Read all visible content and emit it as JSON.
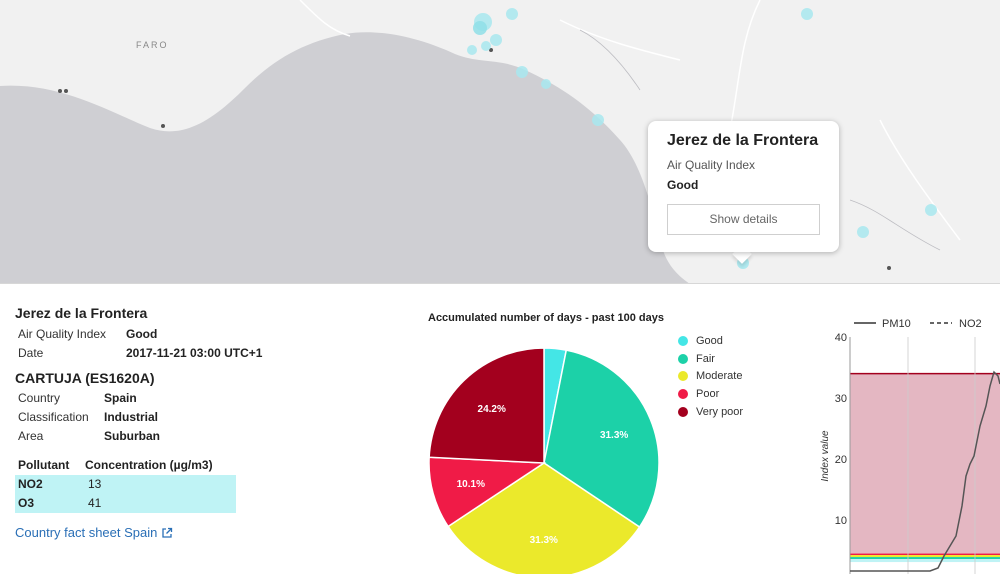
{
  "map": {
    "place_label": "FARO"
  },
  "popup": {
    "title": "Jerez de la Frontera",
    "index_label": "Air Quality Index",
    "index_value": "Good",
    "button_label": "Show details"
  },
  "station": {
    "city": "Jerez de la Frontera",
    "aqi_label": "Air Quality Index",
    "aqi_value": "Good",
    "date_label": "Date",
    "date_value": "2017-11-21 03:00 UTC+1",
    "name": "CARTUJA (ES1620A)",
    "country_label": "Country",
    "country_value": "Spain",
    "classification_label": "Classification",
    "classification_value": "Industrial",
    "area_label": "Area",
    "area_value": "Suburban",
    "pollutant_header": "Pollutant",
    "concentration_header": "Concentration (µg/m3)",
    "pollutants": [
      {
        "name": "NO2",
        "value": "13"
      },
      {
        "name": "O3",
        "value": "41"
      }
    ],
    "fact_sheet_link": "Country fact sheet Spain"
  },
  "colors": {
    "good": "#44e6e6",
    "fair": "#1cd1a8",
    "moderate": "#ebe92b",
    "poor": "#f01b47",
    "very_poor": "#a3001e",
    "link": "#2a6fb6"
  },
  "chart_data": [
    {
      "type": "pie",
      "title": "Accumulated number of days - past 100 days",
      "categories": [
        "Good",
        "Fair",
        "Moderate",
        "Poor",
        "Very poor"
      ],
      "values": [
        3.1,
        31.3,
        31.3,
        10.1,
        24.2
      ],
      "data_labels": [
        "",
        "31.3%",
        "31.3%",
        "10.1%",
        "24.2%"
      ],
      "colors": [
        "#44e6e6",
        "#1cd1a8",
        "#ebe92b",
        "#f01b47",
        "#a3001e"
      ],
      "legend_position": "right"
    },
    {
      "type": "line",
      "ylabel": "Index value",
      "yticks": [
        10,
        20,
        30,
        40
      ],
      "ylim": [
        0,
        40
      ],
      "series": [
        {
          "name": "PM10",
          "style": "solid"
        },
        {
          "name": "NO2",
          "style": "dashed"
        }
      ]
    }
  ]
}
